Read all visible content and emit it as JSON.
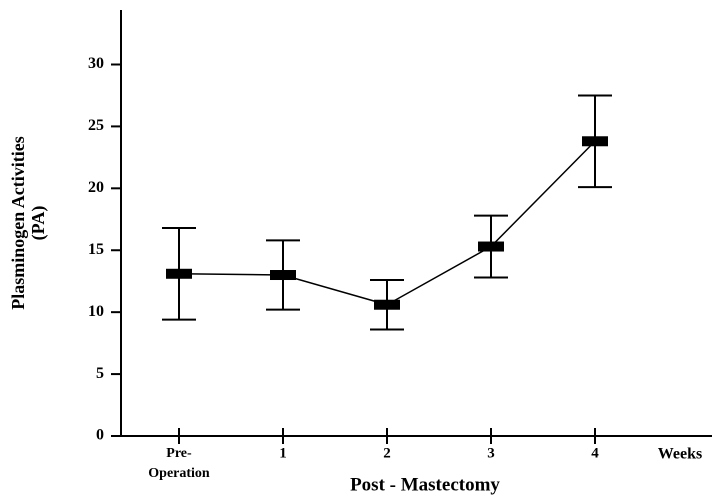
{
  "chart_data": {
    "type": "line",
    "x_label": "Post - Mastectomy",
    "y_label": "Plasminogen Activities\n(PA)",
    "x_unit_label": "Weeks",
    "categories": [
      "Pre-\nOperation",
      "1",
      "2",
      "3",
      "4"
    ],
    "series": [
      {
        "color": "#000000",
        "values": [
          13.1,
          13.0,
          10.6,
          15.3,
          23.8
        ],
        "errors": [
          3.7,
          2.8,
          2.0,
          2.5,
          3.7
        ]
      }
    ],
    "ylim": [
      0,
      34.4
    ],
    "yticks": [
      0,
      5,
      10,
      15,
      20,
      25,
      30
    ]
  }
}
